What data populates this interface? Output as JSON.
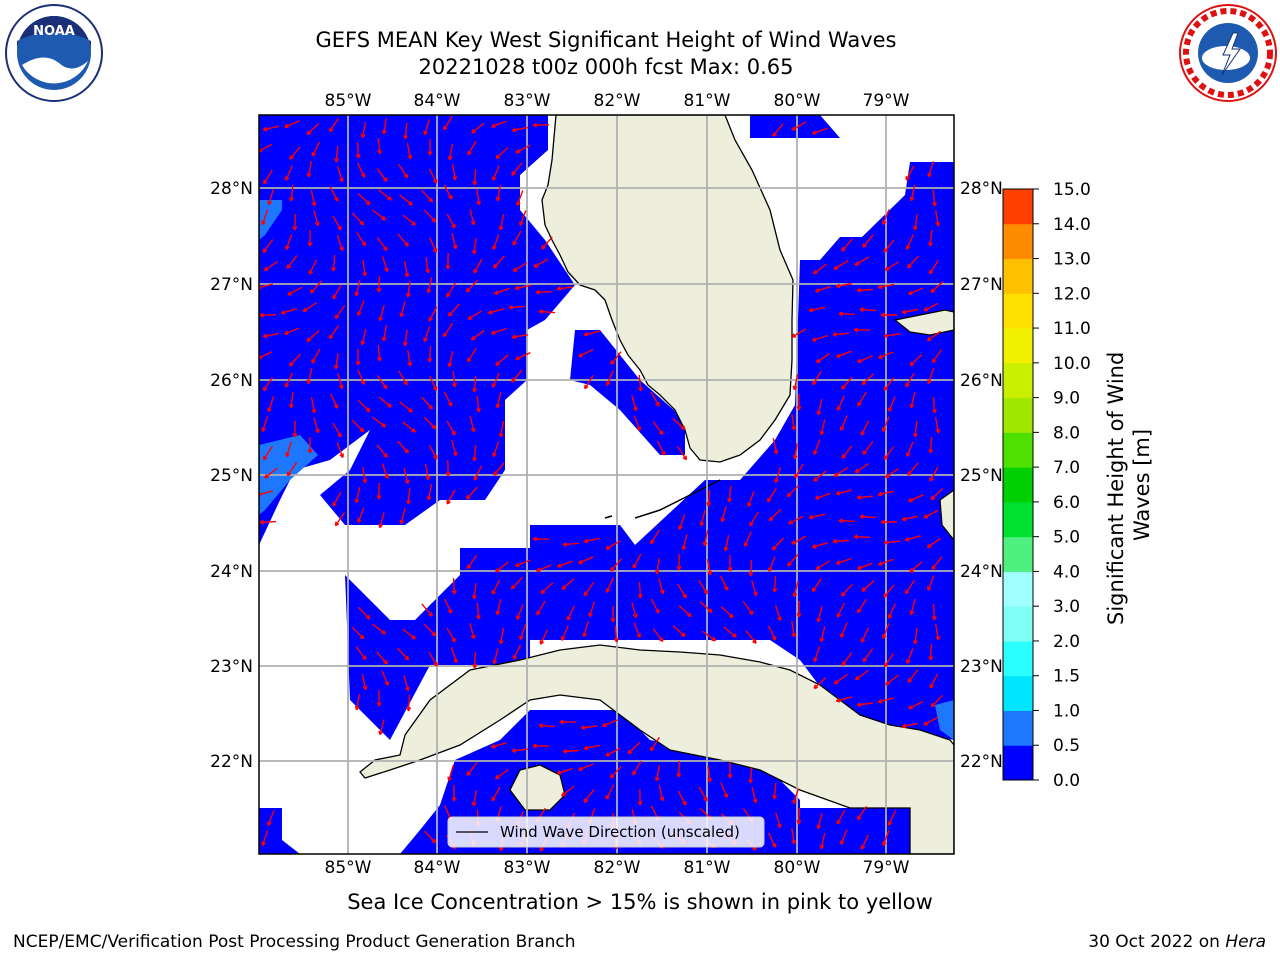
{
  "title": {
    "line1": "GEFS MEAN Key West Significant Height of Wind Waves",
    "line2": "20221028 t00z 000h fcst   Max: 0.65"
  },
  "map": {
    "lon_labels": [
      "85°W",
      "84°W",
      "83°W",
      "82°W",
      "81°W",
      "80°W",
      "79°W"
    ],
    "lat_labels": [
      "28°N",
      "27°N",
      "26°N",
      "25°N",
      "24°N",
      "23°N",
      "22°N"
    ],
    "legend_label": "Wind Wave Direction (unscaled)",
    "colors": {
      "ocean": "#0000ff",
      "land": "#eeeedd",
      "arrow": "#ff0000",
      "grid": "#b0b0b0",
      "light_blue": "#1e78ff"
    }
  },
  "colorbar": {
    "ticks": [
      "0.0",
      "0.5",
      "1.0",
      "1.5",
      "2.0",
      "3.0",
      "4.0",
      "5.0",
      "6.0",
      "7.0",
      "8.0",
      "9.0",
      "10.0",
      "11.0",
      "12.0",
      "13.0",
      "14.0",
      "15.0"
    ],
    "colors": [
      "#0000ff",
      "#1e78ff",
      "#00e5ff",
      "#2bffff",
      "#7ffff5",
      "#a0ffff",
      "#50f080",
      "#00e030",
      "#00d000",
      "#50e000",
      "#a0e800",
      "#c8f000",
      "#f0f000",
      "#ffe000",
      "#ffc000",
      "#ff8c00",
      "#ff4000",
      "#ff0000"
    ],
    "label": "Significant Height of Wind Waves [m]"
  },
  "subtitle": "Sea Ice Concentration > 15% is shown in pink to yellow",
  "footer": {
    "left": "NCEP/EMC/Verification Post Processing Product Generation Branch",
    "right_prefix": "30 Oct 2022 on ",
    "right_host": "Hera"
  },
  "logos": {
    "noaa": "NOAA",
    "nws": "NATIONAL WEATHER SERVICE"
  }
}
